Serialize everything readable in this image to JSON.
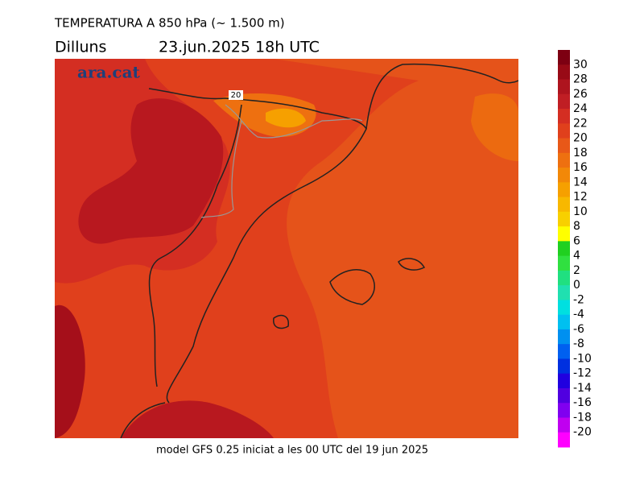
{
  "header": {
    "title": "TEMPERATURA A 850 hPa (~ 1.500 m)",
    "day": "Dilluns",
    "date": "23.jun.2025 18h UTC"
  },
  "map": {
    "logo": "ara.cat",
    "contour_label": "20"
  },
  "footer": "model GFS 0.25 iniciat a les 00 UTC del 19 jun 2025",
  "colorbar": {
    "ticks": [
      30,
      28,
      26,
      24,
      22,
      20,
      18,
      16,
      14,
      12,
      10,
      8,
      6,
      4,
      2,
      0,
      -2,
      -4,
      -6,
      -8,
      -10,
      -12,
      -14,
      -16,
      -18,
      -20
    ],
    "colors": [
      "#7d0012",
      "#980a16",
      "#ae141e",
      "#c01e24",
      "#d42e22",
      "#e0401c",
      "#e85818",
      "#ee7010",
      "#f28808",
      "#f6a000",
      "#f8b800",
      "#f8d000",
      "#ffff00",
      "#20d020",
      "#30e040",
      "#20e080",
      "#20e0b0",
      "#00e0e0",
      "#00c0f0",
      "#0090f0",
      "#0060f0",
      "#0030e0",
      "#2000e0",
      "#5000e0",
      "#8000f0",
      "#c000f0",
      "#ff00ff"
    ]
  }
}
